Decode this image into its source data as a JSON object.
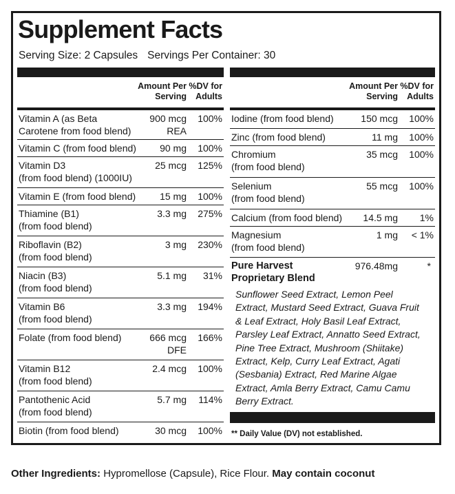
{
  "title": "Supplement Facts",
  "serving": {
    "size": "Serving Size: 2 Capsules",
    "per_container": "Servings Per Container: 30"
  },
  "table_headers": {
    "amount_line1": "Amount Per",
    "amount_line2": "Serving",
    "dv_line1": "%DV for",
    "dv_line2": "Adults"
  },
  "left_rows": [
    {
      "name1": "Vitamin A (as Beta",
      "name2": "Carotene from food blend)",
      "amount1": "900 mcg",
      "amount2": "REA",
      "dv": "100%"
    },
    {
      "name1": "Vitamin C (from food blend)",
      "name2": "",
      "amount1": "90 mg",
      "amount2": "",
      "dv": "100%"
    },
    {
      "name1": "Vitamin D3",
      "name2": "(from food blend) (1000IU)",
      "amount1": "25 mcg",
      "amount2": "",
      "dv": "125%"
    },
    {
      "name1": "Vitamin E (from food blend)",
      "name2": "",
      "amount1": "15 mg",
      "amount2": "",
      "dv": "100%"
    },
    {
      "name1": "Thiamine (B1)",
      "name2": "(from food blend)",
      "amount1": "3.3 mg",
      "amount2": "",
      "dv": "275%"
    },
    {
      "name1": "Riboflavin (B2)",
      "name2": "(from food blend)",
      "amount1": "3 mg",
      "amount2": "",
      "dv": "230%"
    },
    {
      "name1": "Niacin (B3)",
      "name2": "(from food blend)",
      "amount1": "5.1 mg",
      "amount2": "",
      "dv": "31%"
    },
    {
      "name1": "Vitamin B6",
      "name2": "(from food blend)",
      "amount1": "3.3 mg",
      "amount2": "",
      "dv": "194%"
    },
    {
      "name1": "Folate (from food blend)",
      "name2": "",
      "amount1": "666 mcg",
      "amount2": "DFE",
      "dv": "166%"
    },
    {
      "name1": "Vitamin B12",
      "name2": "(from food blend)",
      "amount1": "2.4 mcg",
      "amount2": "",
      "dv": "100%"
    },
    {
      "name1": "Pantothenic Acid",
      "name2": "(from food blend)",
      "amount1": "5.7 mg",
      "amount2": "",
      "dv": "114%"
    },
    {
      "name1": "Biotin (from food blend)",
      "name2": "",
      "amount1": "30 mcg",
      "amount2": "",
      "dv": "100%"
    }
  ],
  "right_rows": [
    {
      "name1": "Iodine (from food blend)",
      "name2": "",
      "amount1": "150 mcg",
      "dv": "100%"
    },
    {
      "name1": "Zinc (from food blend)",
      "name2": "",
      "amount1": "11 mg",
      "dv": "100%"
    },
    {
      "name1": "Chromium",
      "name2": "(from food blend)",
      "amount1": "35 mcg",
      "dv": "100%"
    },
    {
      "name1": "Selenium",
      "name2": "(from food blend)",
      "amount1": "55 mcg",
      "dv": "100%"
    },
    {
      "name1": "Calcium (from food blend)",
      "name2": "",
      "amount1": "14.5 mg",
      "dv": "1%"
    },
    {
      "name1": "Magnesium",
      "name2": "(from food blend)",
      "amount1": "1 mg",
      "dv": "< 1%"
    }
  ],
  "blend": {
    "name_line1": "Pure Harvest",
    "name_line2": "Proprietary Blend",
    "amount": "976.48mg",
    "dv": "*",
    "ingredient_lines": [
      "Sunflower Seed Extract, Lemon Peel",
      "Extract, Mustard Seed Extract, Guava Fruit",
      "& Leaf Extract, Holy Basil Leaf Extract,",
      "Parsley Leaf Extract, Annatto Seed Extract,",
      "Pine Tree Extract, Mushroom (Shiitake)",
      "Extract, Kelp, Curry Leaf Extract, Agati",
      "(Sesbania) Extract, Red Marine Algae",
      "Extract, Amla Berry Extract, Camu Camu",
      "Berry Extract."
    ]
  },
  "footnote": "** Daily Value (DV) not established.",
  "other_ingredients": {
    "label": "Other Ingredients:",
    "text": "Hypromellose (Capsule), Rice Flour.",
    "warning": "May contain coconut"
  }
}
